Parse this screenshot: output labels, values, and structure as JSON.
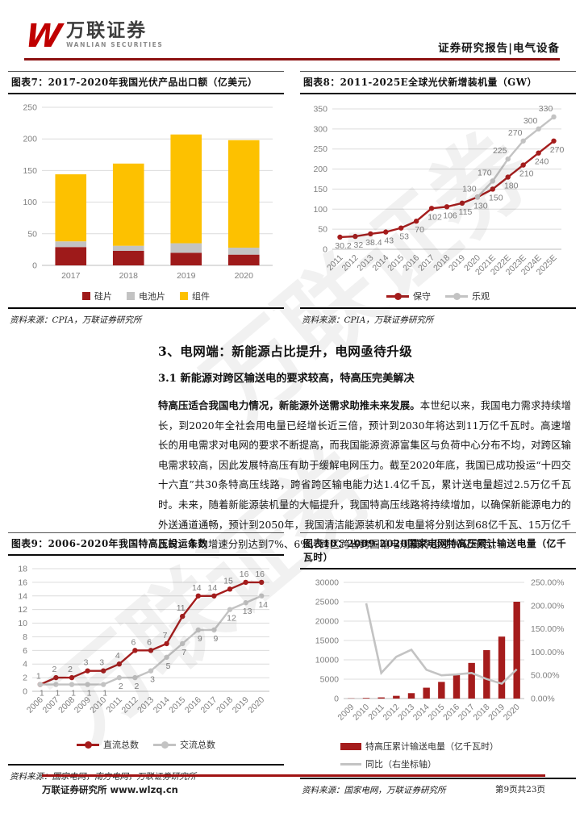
{
  "header": {
    "logo_w": "W",
    "logo_cn": "万联证券",
    "logo_en": "WANLIAN SECURITIES",
    "right_text": "证券研究报告|电气设备"
  },
  "watermark": "万联证券",
  "section": {
    "heading": "3、电网端：新能源占比提升，电网亟待升级",
    "subheading": "3.1 新能源对跨区输送电的要求较高，特高压完美解决",
    "para_bold": "特高压适合我国电力情况，新能源外送需求助推未来发展。",
    "para_rest": "本世纪以来，我国电力需求持续增长，到2020年全社会用电量已经增长近三倍，预计到2030年将达到11万亿千瓦时。高速增长的用电需求对电网的要求不断提高，而我国能源资源富集区与负荷中心分布不均，对跨区输电需求较高，因此发展特高压有助于缓解电网压力。截至2020年底，我国已成功投运“十四交十六直”共30条特高压线路，跨省跨区输电能力达1.4亿千瓦，累计送电量超过2.5万亿千瓦时。未来，随着新能源装机量的大幅提升，我国特高压线路将持续增加，以确保新能源电力的外送通道通畅，预计到2050年，我国清洁能源装机和发电量将分别达到68亿千瓦、15万亿千瓦时，年均增速分别达到7%、6%，跨区跨省跨国输电规模将超过10亿千瓦。"
  },
  "chart_data": [
    {
      "id": "fig7",
      "type": "bar",
      "stacked": true,
      "title": "图表7：2017-2020年我国光伏产品出口额（亿美元）",
      "source": "资料来源：CPIA，万联证券研究所",
      "categories": [
        "2017",
        "2018",
        "2019",
        "2020"
      ],
      "series": [
        {
          "name": "硅片",
          "color": "#9e1a1a",
          "values": [
            29,
            23,
            20,
            17
          ]
        },
        {
          "name": "电池片",
          "color": "#c3c3c3",
          "values": [
            9,
            8,
            15,
            11
          ]
        },
        {
          "name": "组件",
          "color": "#fdc100",
          "values": [
            106,
            130,
            172,
            170
          ]
        }
      ],
      "ylim": [
        0,
        250
      ],
      "yticks": [
        0,
        50,
        100,
        150,
        200,
        250
      ],
      "legend_position": "bottom"
    },
    {
      "id": "fig8",
      "type": "line",
      "title": "图表8：2011-2025E全球光伏新增装机量（GW）",
      "source": "资料来源：CPIA，万联证券研究所",
      "categories": [
        "2011",
        "2012",
        "2013",
        "2014",
        "2015",
        "2016",
        "2017",
        "2018",
        "2019",
        "2020",
        "2021E",
        "2022E",
        "2023E",
        "2024E",
        "2025E"
      ],
      "series": [
        {
          "name": "保守",
          "color": "#a51c1c",
          "label_side": "below",
          "label_dx": 4,
          "values": [
            30.2,
            32,
            38.4,
            43,
            53,
            70,
            102,
            106,
            115,
            130,
            150,
            180,
            210,
            240,
            270
          ]
        },
        {
          "name": "乐观",
          "color": "#c3c3c3",
          "label_side": "above",
          "label_dx": -10,
          "values": [
            null,
            null,
            null,
            null,
            null,
            null,
            null,
            null,
            null,
            130,
            170,
            225,
            270,
            300,
            330
          ]
        }
      ],
      "ylim": [
        0,
        350
      ],
      "yticks": [
        0,
        50,
        100,
        150,
        200,
        250,
        300,
        350
      ],
      "x_rotated": true,
      "show_labels": true,
      "legend_position": "bottom"
    },
    {
      "id": "fig9",
      "type": "line",
      "title": "图表9：2006-2020年我国特高压投运条数",
      "source": "资料来源：国家电网，南方电网，万联证券研究所",
      "categories": [
        "2006",
        "2007",
        "2008",
        "2009",
        "2010",
        "2011",
        "2012",
        "2013",
        "2014",
        "2015",
        "2016",
        "2017",
        "2018",
        "2019",
        "2020"
      ],
      "series": [
        {
          "name": "直流总数",
          "color": "#a51c1c",
          "label_side": "above",
          "label_dx": -2,
          "values": [
            1,
            2,
            2,
            3,
            3,
            4,
            6,
            6,
            7,
            11,
            14,
            14,
            15,
            16,
            16
          ]
        },
        {
          "name": "交流总数",
          "color": "#c3c3c3",
          "label_side": "below",
          "label_dx": 2,
          "values": [
            1,
            1,
            1,
            1,
            1,
            2,
            2,
            3,
            5,
            7,
            9,
            9,
            12,
            13,
            14
          ]
        }
      ],
      "ylim": [
        0,
        18
      ],
      "yticks": [
        0,
        2,
        4,
        6,
        8,
        10,
        12,
        14,
        16,
        18
      ],
      "x_rotated": true,
      "show_labels": true,
      "legend_position": "bottom"
    },
    {
      "id": "fig10",
      "type": "combo",
      "title": "图表10：2009-2020国家电网特高压累计输送电量（亿千瓦时）",
      "source": "资料来源：国家电网，万联证券研究所",
      "categories": [
        "2009",
        "2010",
        "2011",
        "2012",
        "2013",
        "2014",
        "2015",
        "2016",
        "2017",
        "2018",
        "2019",
        "2020"
      ],
      "bars": {
        "name": "特高压累计输送电量（亿千瓦时）",
        "color": "#a51c1c",
        "values": [
          60,
          160,
          300,
          700,
          1400,
          2800,
          4300,
          6200,
          9200,
          12500,
          16000,
          25000
        ]
      },
      "line": {
        "name": "同比（右坐标轴）",
        "color": "#c3c3c3",
        "values": [
          null,
          205,
          55,
          90,
          105,
          62,
          50,
          52,
          55,
          42,
          32,
          63
        ]
      },
      "ylim": [
        0,
        30000
      ],
      "yticks": [
        0,
        5000,
        10000,
        15000,
        20000,
        25000,
        30000
      ],
      "ylim_right": [
        0,
        250
      ],
      "yticks_right": [
        "0.00%",
        "50.00%",
        "100.00%",
        "150.00%",
        "200.00%",
        "250.00%"
      ],
      "x_rotated": true,
      "legend_position": "bottom-left"
    }
  ],
  "footer": {
    "left": "万联证券研究所 www.wlzq.cn",
    "page": "第9页共23页"
  }
}
